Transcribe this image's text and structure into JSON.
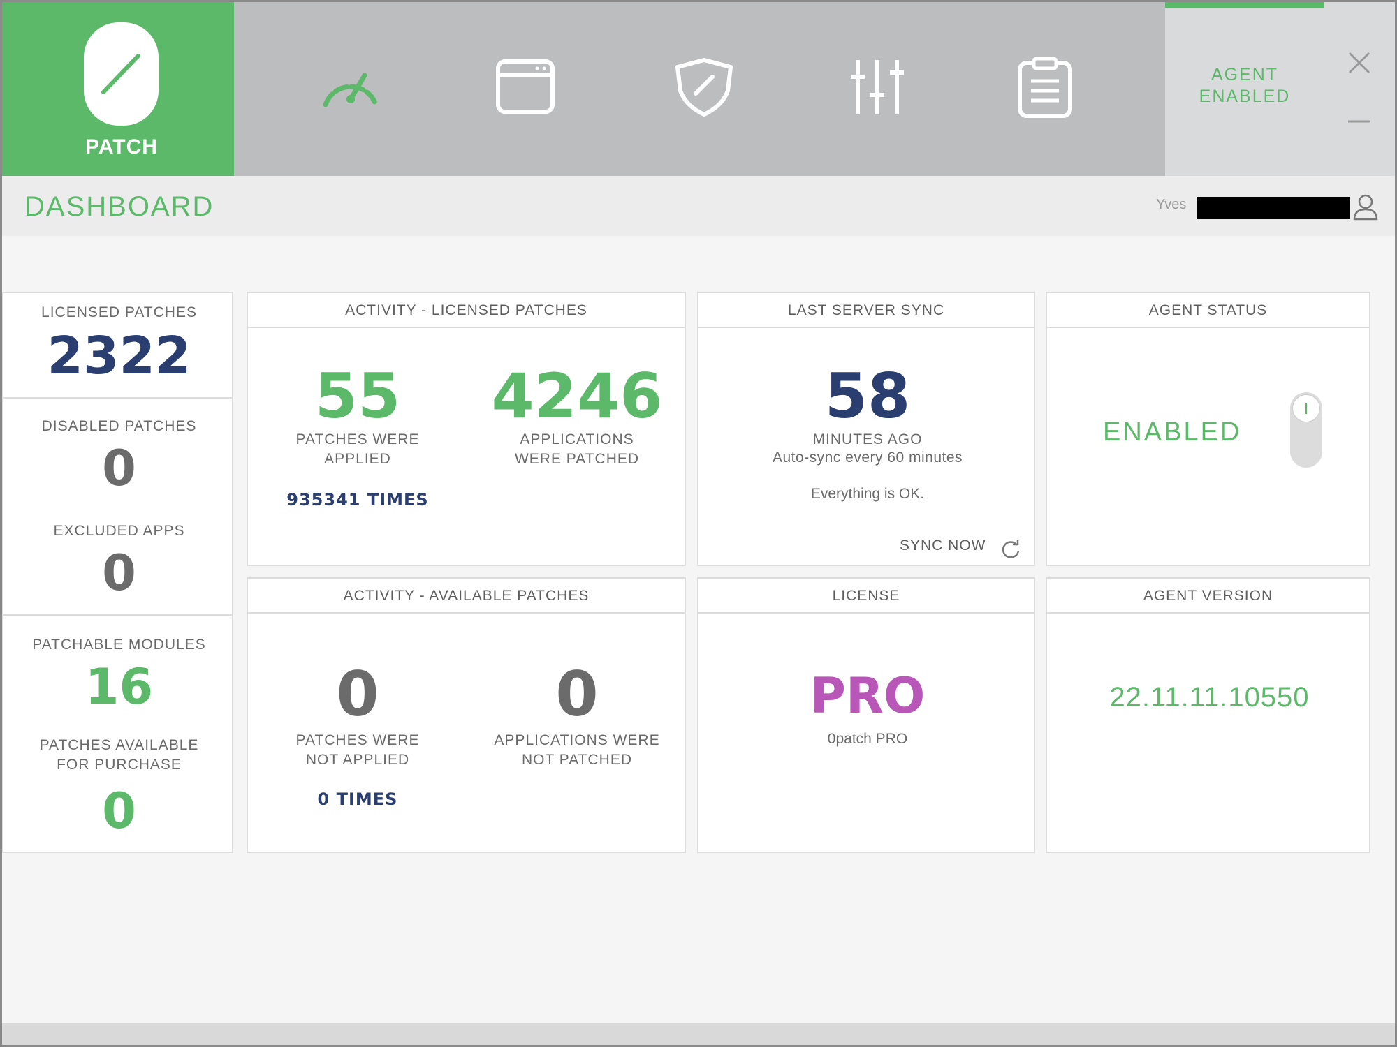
{
  "brand": {
    "label": "PATCH",
    "color": "#5cb96a"
  },
  "nav": {
    "icons": [
      "speedometer-icon",
      "window-icon",
      "shield-icon",
      "sliders-icon",
      "clipboard-icon"
    ]
  },
  "agent_panel": {
    "line1": "AGENT",
    "line2": "ENABLED"
  },
  "header": {
    "title": "DASHBOARD",
    "user": "Yves"
  },
  "left_column": {
    "licensed_patches": {
      "label": "LICENSED PATCHES",
      "value": "2322"
    },
    "disabled_patches": {
      "label": "DISABLED PATCHES",
      "value": "0"
    },
    "excluded_apps": {
      "label": "EXCLUDED APPS",
      "value": "0"
    },
    "patchable_modules": {
      "label": "PATCHABLE MODULES",
      "value": "16"
    },
    "available_for_purchase": {
      "label_line1": "PATCHES AVAILABLE",
      "label_line2": "FOR PURCHASE",
      "value": "0"
    }
  },
  "activity_licensed": {
    "title": "ACTIVITY - LICENSED PATCHES",
    "applied_value": "55",
    "applied_line1": "PATCHES WERE",
    "applied_line2": "APPLIED",
    "times": "935341 TIMES",
    "apps_value": "4246",
    "apps_line1": "APPLICATIONS",
    "apps_line2": "WERE PATCHED"
  },
  "activity_available": {
    "title": "ACTIVITY - AVAILABLE PATCHES",
    "applied_value": "0",
    "applied_line1": "PATCHES WERE",
    "applied_line2": "NOT APPLIED",
    "times": "0 TIMES",
    "apps_value": "0",
    "apps_line1": "APPLICATIONS WERE",
    "apps_line2": "NOT PATCHED"
  },
  "server_sync": {
    "title": "LAST SERVER SYNC",
    "value": "58",
    "unit": "MINUTES AGO",
    "auto_sync": "Auto-sync every 60 minutes",
    "status": "Everything is OK.",
    "sync_now": "SYNC NOW"
  },
  "license": {
    "title": "LICENSE",
    "value": "PRO",
    "name": "0patch PRO"
  },
  "agent_status": {
    "title": "AGENT STATUS",
    "value": "ENABLED",
    "toggle_on": true
  },
  "agent_version": {
    "title": "AGENT VERSION",
    "value": "22.11.11.10550"
  },
  "colors": {
    "green": "#5cb96a",
    "navy": "#2b3e70",
    "purple": "#b857b8",
    "gray": "#6b6b6b"
  }
}
